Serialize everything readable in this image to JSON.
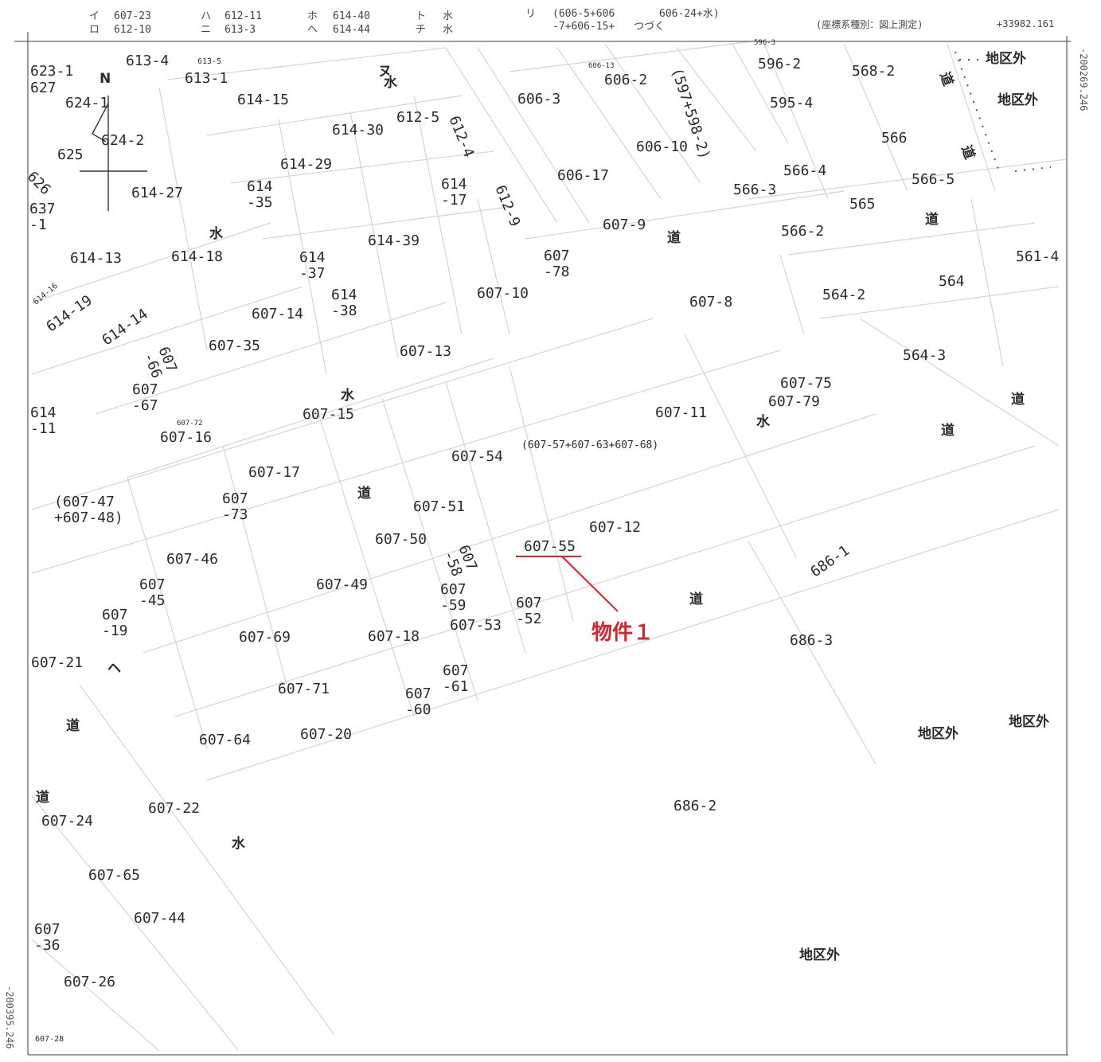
{
  "header": {
    "legend": [
      {
        "key": "イ",
        "lines": [
          "607-23"
        ]
      },
      {
        "key": "ロ",
        "lines": [
          "612-10"
        ]
      },
      {
        "key": "ハ",
        "lines": [
          "612-11"
        ]
      },
      {
        "key": "ニ",
        "lines": [
          "613-3"
        ]
      },
      {
        "key": "ホ",
        "lines": [
          "614-40"
        ]
      },
      {
        "key": "ヘ",
        "lines": [
          "614-44"
        ]
      },
      {
        "key": "ト",
        "lines": [
          "水"
        ]
      },
      {
        "key": "チ",
        "lines": [
          "水"
        ]
      },
      {
        "key": "リ",
        "lines": [
          "(606-5+606",
          "-7+606-15+"
        ]
      },
      {
        "key": "",
        "lines": [
          "606-24+水)",
          "つづく"
        ]
      }
    ],
    "coord_system_note": "(座標系種別：図上測定)",
    "coord_top_right": "+33982.161"
  },
  "side_coords": {
    "right": "-200269.246",
    "left": "-200395.246"
  },
  "parcels": [
    {
      "t": "623-1"
    },
    {
      "t": "627"
    },
    {
      "t": "613-4"
    },
    {
      "t": "613-5",
      "size": "sm"
    },
    {
      "t": "613-1"
    },
    {
      "t": "624-1"
    },
    {
      "t": "624-2"
    },
    {
      "t": "625"
    },
    {
      "t": "626"
    },
    {
      "t": "614-15"
    },
    {
      "t": "614-30"
    },
    {
      "t": "612-5"
    },
    {
      "t": "606-3"
    },
    {
      "t": "606-13",
      "size": "xs"
    },
    {
      "t": "606-2"
    },
    {
      "t": "(597+598-2)"
    },
    {
      "t": "596-3",
      "size": "xs"
    },
    {
      "t": "596-2"
    },
    {
      "t": "568-2"
    },
    {
      "t": "595-4"
    },
    {
      "t": "612-4"
    },
    {
      "t": "606-10"
    },
    {
      "t": "566"
    },
    {
      "t": "614-29"
    },
    {
      "t": "614-27"
    },
    {
      "t": "614\n-35"
    },
    {
      "t": "614\n-17"
    },
    {
      "t": "612-9"
    },
    {
      "t": "606-17"
    },
    {
      "t": "566-4"
    },
    {
      "t": "566-5"
    },
    {
      "t": "566-3"
    },
    {
      "t": "565"
    },
    {
      "t": "637\n-1"
    },
    {
      "t": "607-9"
    },
    {
      "t": "566-2"
    },
    {
      "t": "614-39"
    },
    {
      "t": "614-13"
    },
    {
      "t": "614-18"
    },
    {
      "t": "614\n-37"
    },
    {
      "t": "607\n-78"
    },
    {
      "t": "561-4"
    },
    {
      "t": "564"
    },
    {
      "t": "614\n-38"
    },
    {
      "t": "607-10"
    },
    {
      "t": "607-8"
    },
    {
      "t": "564-2"
    },
    {
      "t": "614-16",
      "size": "sm"
    },
    {
      "t": "614-19"
    },
    {
      "t": "614-14"
    },
    {
      "t": "607-14"
    },
    {
      "t": "607\n-66"
    },
    {
      "t": "607-35"
    },
    {
      "t": "607-13"
    },
    {
      "t": "564-3"
    },
    {
      "t": "607\n-67"
    },
    {
      "t": "607-75"
    },
    {
      "t": "607-79"
    },
    {
      "t": "614\n-11"
    },
    {
      "t": "607-72",
      "size": "xs"
    },
    {
      "t": "607-16"
    },
    {
      "t": "607-15"
    },
    {
      "t": "607-11"
    },
    {
      "t": "607-54"
    },
    {
      "t": "(607-57+607-63+607-68)",
      "size": "md"
    },
    {
      "t": "607-17"
    },
    {
      "t": "(607-47\n+607-48)"
    },
    {
      "t": "607\n-73"
    },
    {
      "t": "607-51"
    },
    {
      "t": "607-12"
    },
    {
      "t": "607-50"
    },
    {
      "t": "607\n-58"
    },
    {
      "t": "607-55"
    },
    {
      "t": "607-46"
    },
    {
      "t": "686-1"
    },
    {
      "t": "607\n-45"
    },
    {
      "t": "607-49"
    },
    {
      "t": "607\n-59"
    },
    {
      "t": "607\n-52"
    },
    {
      "t": "607\n-19"
    },
    {
      "t": "607-53"
    },
    {
      "t": "607-69"
    },
    {
      "t": "607-18"
    },
    {
      "t": "686-3"
    },
    {
      "t": "607-21"
    },
    {
      "t": "607\n-61"
    },
    {
      "t": "607-71"
    },
    {
      "t": "607\n-60"
    },
    {
      "t": "607-64"
    },
    {
      "t": "607-20"
    },
    {
      "t": "607-22"
    },
    {
      "t": "686-2"
    },
    {
      "t": "607-24"
    },
    {
      "t": "607-65"
    },
    {
      "t": "607-44"
    },
    {
      "t": "607\n-36"
    },
    {
      "t": "607-26"
    },
    {
      "t": "607-28",
      "size": "sm"
    }
  ],
  "kanji_labels": [
    {
      "t": "地区外"
    },
    {
      "t": "地区外"
    },
    {
      "t": "道"
    },
    {
      "t": "道"
    },
    {
      "t": "ヌ"
    },
    {
      "t": "水"
    },
    {
      "t": "水"
    },
    {
      "t": "道"
    },
    {
      "t": "道"
    },
    {
      "t": "水"
    },
    {
      "t": "道"
    },
    {
      "t": "道"
    },
    {
      "t": "道"
    },
    {
      "t": "地区外"
    },
    {
      "t": "地区外"
    },
    {
      "t": "道"
    },
    {
      "t": "水"
    },
    {
      "t": "道"
    },
    {
      "t": "道"
    },
    {
      "t": "地区外"
    },
    {
      "t": "水"
    },
    {
      "t": "ヘ"
    },
    {
      "t": "N"
    }
  ],
  "property_label": "物件１",
  "colors": {
    "property": "#d8232a",
    "parcel_line": "#cfcfcf",
    "frame": "#666666"
  }
}
